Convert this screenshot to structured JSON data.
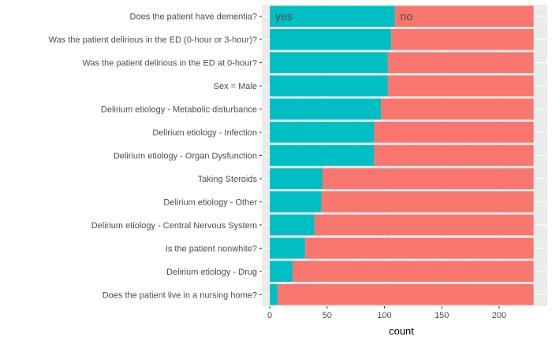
{
  "chart_data": {
    "type": "bar",
    "orientation": "horizontal",
    "stacked": true,
    "xlabel": "count",
    "ylabel": "",
    "xlim": [
      -5,
      242
    ],
    "xticks": [
      0,
      50,
      100,
      150,
      200
    ],
    "total": 230,
    "grid": true,
    "legend": "none",
    "categories": [
      "Does the patient have dementia?",
      "Was the patient delirious in the ED (0-hour or 3-hour)?",
      "Was the patient delirious in the ED at 0-hour?",
      "Sex = Male",
      "Delirium etiology - Metabolic disturbance",
      "Delirium etiology - Infection",
      "Delirium etiology - Organ Dysfunction",
      "Taking Steroids",
      "Delirium etiology - Other",
      "Delirium etiology - Central Nervous System",
      "Is the patient nonwhite?",
      "Delirium etiology - Drug",
      "Does the patient live in a nursing home?"
    ],
    "series": [
      {
        "name": "yes",
        "color": "#00BFC4",
        "values": [
          109,
          106,
          103,
          103,
          97,
          91,
          91,
          46,
          45,
          39,
          31,
          20,
          7
        ]
      },
      {
        "name": "no",
        "color": "#F8766D",
        "values": [
          121,
          124,
          127,
          127,
          133,
          139,
          139,
          184,
          185,
          191,
          199,
          210,
          223
        ]
      }
    ],
    "annotations": [
      {
        "text": "yes",
        "bar": 0,
        "series": "yes"
      },
      {
        "text": "no",
        "bar": 0,
        "series": "no"
      }
    ],
    "colors": {
      "panel": "#EBEBEB",
      "grid_major": "#FFFFFF",
      "grid_minor": "#F5F5F5"
    }
  }
}
